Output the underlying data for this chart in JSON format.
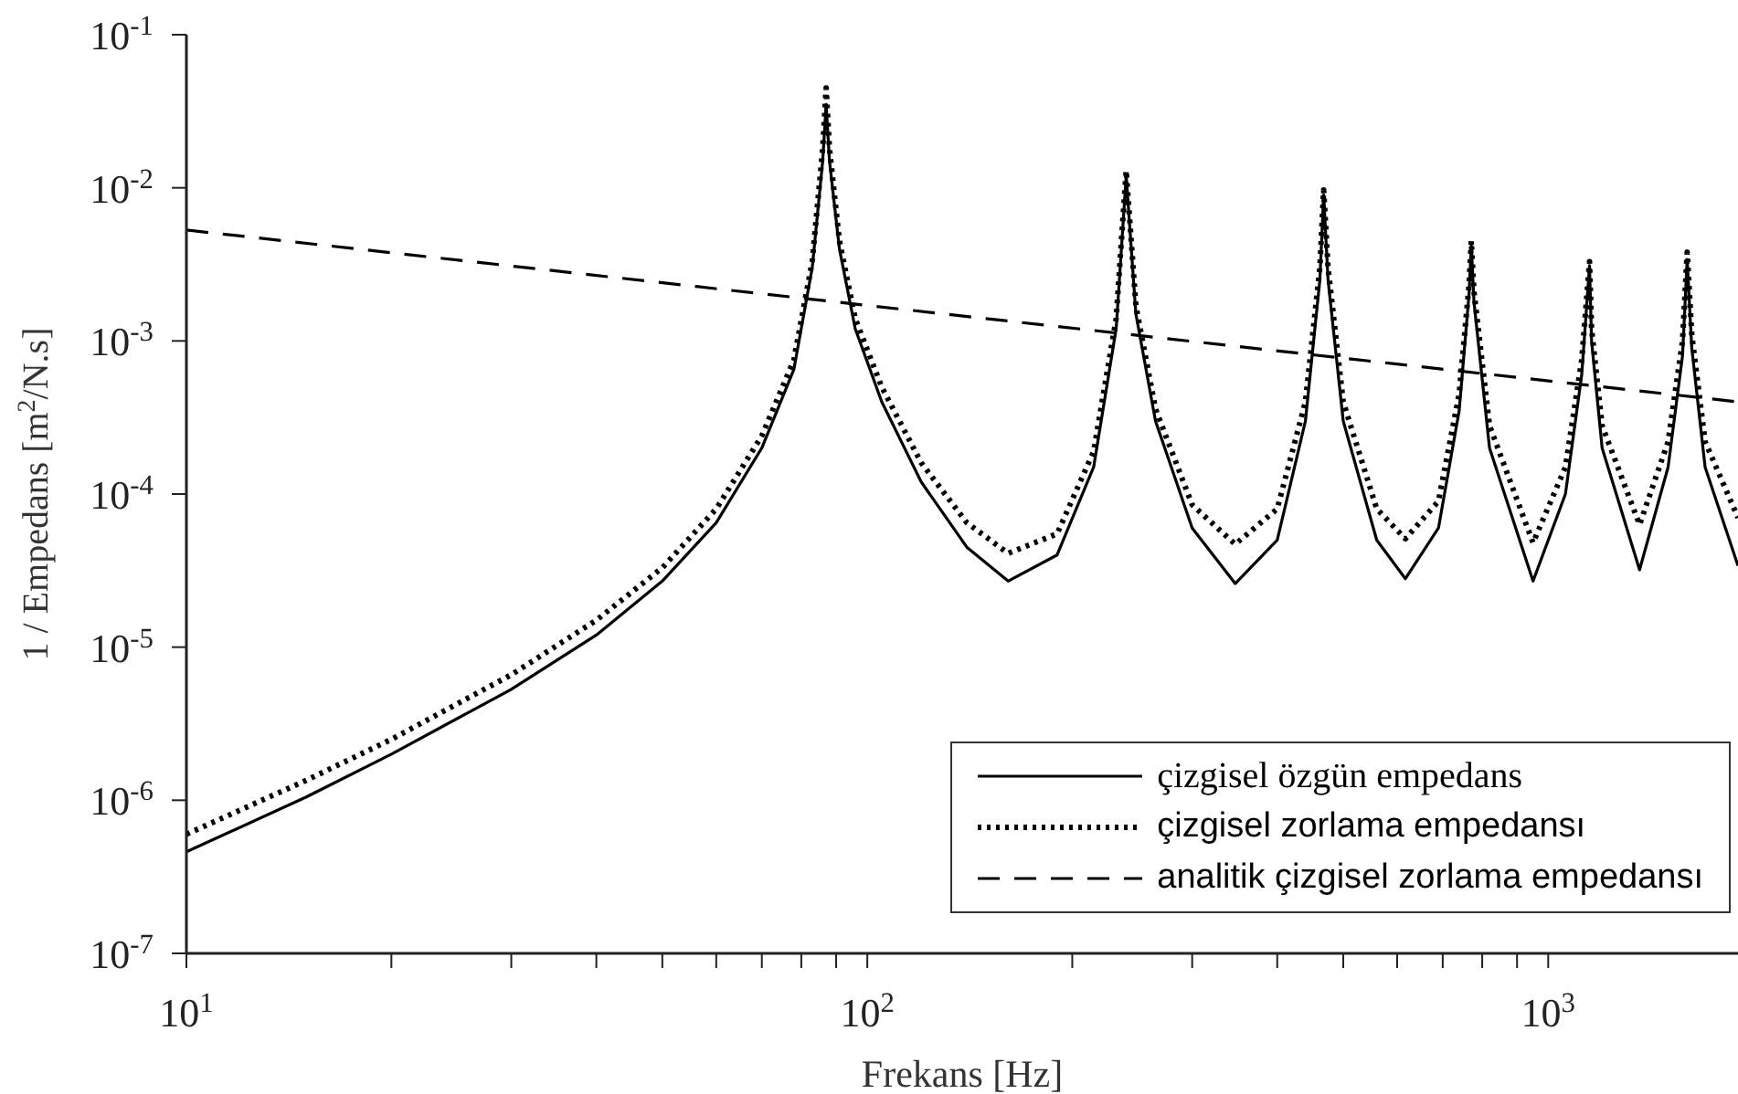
{
  "chart_data": {
    "type": "line",
    "xlabel": "Frekans [Hz]",
    "ylabel": "1 / Empedans [m$^{2}$/N.s]",
    "log": "xy",
    "legend": "bottom right",
    "xlim": [
      10,
      1900
    ],
    "ylim": [
      1e-07,
      0.1
    ],
    "xticks": [
      {
        "value": 10,
        "label": "10$^{1}$"
      },
      {
        "value": 20,
        "label": null
      },
      {
        "value": 30,
        "label": null
      },
      {
        "value": 40,
        "label": null
      },
      {
        "value": 50,
        "label": null
      },
      {
        "value": 60,
        "label": null
      },
      {
        "value": 70,
        "label": null
      },
      {
        "value": 80,
        "label": null
      },
      {
        "value": 90,
        "label": null
      },
      {
        "value": 100,
        "label": "10$^{2}$"
      },
      {
        "value": 200,
        "label": null
      },
      {
        "value": 300,
        "label": null
      },
      {
        "value": 400,
        "label": null
      },
      {
        "value": 500,
        "label": null
      },
      {
        "value": 600,
        "label": null
      },
      {
        "value": 700,
        "label": null
      },
      {
        "value": 800,
        "label": null
      },
      {
        "value": 900,
        "label": null
      },
      {
        "value": 1000,
        "label": "10$^{3}$"
      }
    ],
    "yticks": [
      {
        "value": 1e-07,
        "label": "10$^{-7}$"
      },
      {
        "value": 1e-06,
        "label": "10$^{-6}$"
      },
      {
        "value": 1e-05,
        "label": "10$^{-5}$"
      },
      {
        "value": 0.0001,
        "label": "10$^{-4}$"
      },
      {
        "value": 0.001,
        "label": "10$^{-3}$"
      },
      {
        "value": 0.01,
        "label": "10$^{-2}$"
      },
      {
        "value": 0.1,
        "label": "10$^{-1}$"
      }
    ],
    "series": [
      {
        "name": "çizgisel özgün empedans",
        "color": "#000000",
        "line_style": "solid",
        "x": [
          10,
          15,
          20,
          30,
          40,
          50,
          60,
          70,
          78,
          83,
          86,
          87,
          88,
          91,
          96,
          105,
          120,
          140,
          161,
          190,
          215,
          232,
          240,
          248,
          265,
          300,
          347,
          400,
          440,
          462,
          468,
          475,
          500,
          560,
          617,
          690,
          740,
          765,
          771,
          778,
          820,
          950,
          1060,
          1120,
          1150,
          1158,
          1200,
          1362,
          1500,
          1575,
          1600,
          1625,
          1700,
          1900
        ],
        "values": [
          4.6e-07,
          1.05e-06,
          2e-06,
          5.3e-06,
          1.2e-05,
          2.7e-05,
          6.5e-05,
          0.0002,
          0.00065,
          0.003,
          0.015,
          0.035,
          0.015,
          0.004,
          0.0012,
          0.0004,
          0.00012,
          4.5e-05,
          2.7e-05,
          4e-05,
          0.00015,
          0.0012,
          0.012,
          0.0015,
          0.0003,
          6e-05,
          2.6e-05,
          5e-05,
          0.0003,
          0.0025,
          0.009,
          0.0025,
          0.0003,
          5e-05,
          2.8e-05,
          6e-05,
          0.00035,
          0.002,
          0.0042,
          0.0018,
          0.0002,
          2.7e-05,
          0.0001,
          0.0006,
          0.0031,
          0.001,
          0.0002,
          3.2e-05,
          0.00015,
          0.0008,
          0.0034,
          0.0009,
          0.00015,
          3.4e-05
        ]
      },
      {
        "name": "çizgisel zorlama empedansı",
        "color": "#000000",
        "line_style": "dotted",
        "x": [
          10,
          15,
          20,
          30,
          40,
          50,
          60,
          70,
          78,
          83,
          86,
          87,
          88,
          91,
          96,
          105,
          120,
          140,
          161,
          190,
          215,
          232,
          240,
          248,
          265,
          300,
          347,
          400,
          440,
          462,
          468,
          475,
          500,
          560,
          617,
          690,
          740,
          765,
          771,
          778,
          820,
          950,
          1060,
          1120,
          1150,
          1158,
          1200,
          1362,
          1500,
          1575,
          1600,
          1625,
          1700,
          1900
        ],
        "values": [
          6e-07,
          1.35e-06,
          2.5e-06,
          6.6e-06,
          1.5e-05,
          3.3e-05,
          8e-05,
          0.00024,
          0.00075,
          0.0033,
          0.018,
          0.045,
          0.018,
          0.0045,
          0.0014,
          0.0005,
          0.00016,
          6.5e-05,
          4.1e-05,
          5.5e-05,
          0.00019,
          0.0014,
          0.013,
          0.0017,
          0.00036,
          8.5e-05,
          4.7e-05,
          8e-05,
          0.0004,
          0.003,
          0.0097,
          0.003,
          0.0004,
          8e-05,
          5.1e-05,
          9e-05,
          0.00045,
          0.0023,
          0.0045,
          0.0021,
          0.00028,
          4.8e-05,
          0.00015,
          0.00075,
          0.0033,
          0.0012,
          0.00028,
          6.3e-05,
          0.00022,
          0.001,
          0.0038,
          0.0011,
          0.00022,
          7e-05
        ]
      },
      {
        "name": "analitik çizgisel zorlama empedansı",
        "color": "#000000",
        "line_style": "dashed",
        "x": [
          10,
          1900
        ],
        "values": [
          0.0053,
          0.0004
        ]
      }
    ]
  }
}
